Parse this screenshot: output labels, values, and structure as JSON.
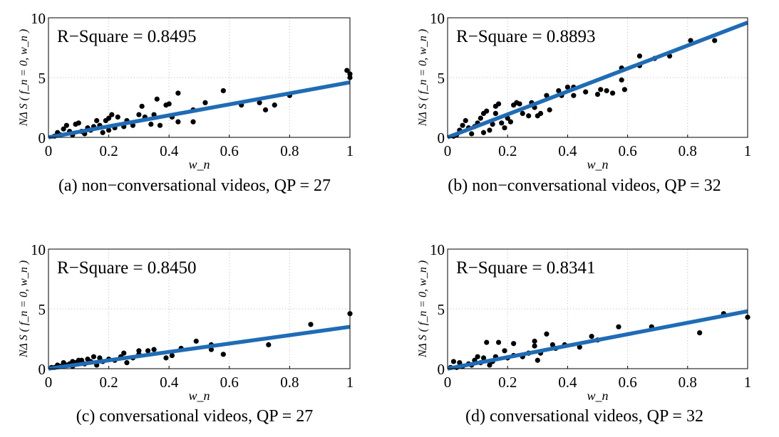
{
  "chart_data": [
    {
      "type": "scatter",
      "caption": "(a) non−conversational videos, QP = 27",
      "annotation": "R−Square = 0.8495",
      "xlabel": "w_n",
      "ylabel": "NΔ S ( f_n = 0, w_n )",
      "xlim": [
        0,
        1
      ],
      "ylim": [
        0,
        10
      ],
      "xticks": [
        "0",
        "0.2",
        "0.4",
        "0.6",
        "0.8",
        "1"
      ],
      "yticks": [
        "0",
        "5",
        "10"
      ],
      "grid": true,
      "fit_line": {
        "x": [
          0,
          1
        ],
        "y": [
          0,
          4.6
        ],
        "color": "#1f6cb5"
      },
      "points": [
        [
          0.99,
          5.6
        ],
        [
          1,
          5.3
        ],
        [
          1,
          5.0
        ],
        [
          0.58,
          3.9
        ],
        [
          0.43,
          3.7
        ],
        [
          0.36,
          3.2
        ],
        [
          0.8,
          3.5
        ],
        [
          0.75,
          2.7
        ],
        [
          0.72,
          2.3
        ],
        [
          0.7,
          2.9
        ],
        [
          0.64,
          2.7
        ],
        [
          0.52,
          2.9
        ],
        [
          0.48,
          1.3
        ],
        [
          0.48,
          2.3
        ],
        [
          0.43,
          1.3
        ],
        [
          0.4,
          2.8
        ],
        [
          0.39,
          2.7
        ],
        [
          0.41,
          1.7
        ],
        [
          0.37,
          1.0
        ],
        [
          0.35,
          1.9
        ],
        [
          0.32,
          1.7
        ],
        [
          0.31,
          2.6
        ],
        [
          0.3,
          1.9
        ],
        [
          0.28,
          1.0
        ],
        [
          0.26,
          1.4
        ],
        [
          0.23,
          1.7
        ],
        [
          0.21,
          1.9
        ],
        [
          0.2,
          1.6
        ],
        [
          0.19,
          1.4
        ],
        [
          0.16,
          1.4
        ],
        [
          0.15,
          0.9
        ],
        [
          0.13,
          0.8
        ],
        [
          0.1,
          1.2
        ],
        [
          0.09,
          1.1
        ],
        [
          0.06,
          1.0
        ],
        [
          0.05,
          0.7
        ],
        [
          0.2,
          0.6
        ],
        [
          0.22,
          0.8
        ],
        [
          0.18,
          0.4
        ],
        [
          0.12,
          0.3
        ],
        [
          0.08,
          0.2
        ],
        [
          0.04,
          0.2
        ],
        [
          0.02,
          0.1
        ],
        [
          0.25,
          0.9
        ],
        [
          0.14,
          0.6
        ],
        [
          0.11,
          0.5
        ],
        [
          0.07,
          0.5
        ],
        [
          0.03,
          0.4
        ],
        [
          0.17,
          1.0
        ],
        [
          0.34,
          1.1
        ]
      ]
    },
    {
      "type": "scatter",
      "caption": "(b) non−conversational videos, QP = 32",
      "annotation": "R−Square = 0.8893",
      "xlabel": "w_n",
      "ylabel": "NΔ S ( f_n = 0, w_n )",
      "xlim": [
        0,
        1
      ],
      "ylim": [
        0,
        10
      ],
      "xticks": [
        "0",
        "0.2",
        "0.4",
        "0.6",
        "0.8",
        "1"
      ],
      "yticks": [
        "0",
        "5",
        "10"
      ],
      "grid": true,
      "fit_line": {
        "x": [
          0,
          1
        ],
        "y": [
          0,
          9.6
        ],
        "color": "#1f6cb5"
      },
      "points": [
        [
          0.89,
          8.1
        ],
        [
          0.81,
          8.1
        ],
        [
          0.74,
          6.8
        ],
        [
          0.69,
          6.6
        ],
        [
          0.64,
          6.8
        ],
        [
          0.64,
          6.0
        ],
        [
          0.58,
          5.8
        ],
        [
          0.58,
          4.8
        ],
        [
          0.59,
          4.0
        ],
        [
          0.55,
          3.7
        ],
        [
          0.53,
          3.9
        ],
        [
          0.51,
          4.0
        ],
        [
          0.5,
          3.6
        ],
        [
          0.46,
          3.8
        ],
        [
          0.42,
          3.5
        ],
        [
          0.42,
          4.2
        ],
        [
          0.4,
          4.2
        ],
        [
          0.38,
          3.5
        ],
        [
          0.37,
          3.9
        ],
        [
          0.34,
          2.3
        ],
        [
          0.33,
          3.5
        ],
        [
          0.31,
          2.0
        ],
        [
          0.3,
          1.8
        ],
        [
          0.29,
          2.5
        ],
        [
          0.28,
          2.9
        ],
        [
          0.27,
          1.8
        ],
        [
          0.25,
          2.0
        ],
        [
          0.24,
          2.8
        ],
        [
          0.23,
          2.9
        ],
        [
          0.22,
          2.7
        ],
        [
          0.21,
          1.3
        ],
        [
          0.2,
          1.6
        ],
        [
          0.18,
          1.2
        ],
        [
          0.17,
          2.8
        ],
        [
          0.16,
          2.6
        ],
        [
          0.16,
          2.0
        ],
        [
          0.15,
          1.1
        ],
        [
          0.13,
          2.2
        ],
        [
          0.12,
          2.0
        ],
        [
          0.11,
          1.6
        ],
        [
          0.1,
          1.2
        ],
        [
          0.09,
          0.9
        ],
        [
          0.07,
          0.8
        ],
        [
          0.06,
          1.4
        ],
        [
          0.05,
          1.0
        ],
        [
          0.04,
          0.6
        ],
        [
          0.14,
          0.6
        ],
        [
          0.12,
          0.4
        ],
        [
          0.08,
          0.3
        ],
        [
          0.03,
          0.2
        ],
        [
          0.02,
          0.1
        ],
        [
          0.19,
          0.8
        ]
      ]
    },
    {
      "type": "scatter",
      "caption": "(c) conversational videos, QP = 27",
      "annotation": "R−Square = 0.8450",
      "xlabel": "w_n",
      "ylabel": "NΔ S ( f_n = 0, w_n )",
      "xlim": [
        0,
        1
      ],
      "ylim": [
        0,
        10
      ],
      "xticks": [
        "0",
        "0.2",
        "0.4",
        "0.6",
        "0.8",
        "1"
      ],
      "yticks": [
        "0",
        "5",
        "10"
      ],
      "grid": true,
      "fit_line": {
        "x": [
          0,
          1
        ],
        "y": [
          0,
          3.5
        ],
        "color": "#1f6cb5"
      },
      "points": [
        [
          1,
          4.6
        ],
        [
          0.87,
          3.7
        ],
        [
          0.73,
          2.0
        ],
        [
          0.58,
          1.2
        ],
        [
          0.54,
          1.6
        ],
        [
          0.54,
          2.0
        ],
        [
          0.49,
          2.3
        ],
        [
          0.44,
          1.7
        ],
        [
          0.41,
          1.1
        ],
        [
          0.39,
          0.9
        ],
        [
          0.35,
          1.6
        ],
        [
          0.33,
          1.5
        ],
        [
          0.3,
          1.2
        ],
        [
          0.3,
          1.5
        ],
        [
          0.28,
          0.9
        ],
        [
          0.26,
          0.5
        ],
        [
          0.25,
          1.3
        ],
        [
          0.24,
          1.0
        ],
        [
          0.22,
          0.7
        ],
        [
          0.2,
          0.8
        ],
        [
          0.18,
          0.6
        ],
        [
          0.17,
          0.9
        ],
        [
          0.15,
          1.0
        ],
        [
          0.14,
          0.6
        ],
        [
          0.13,
          0.8
        ],
        [
          0.12,
          0.4
        ],
        [
          0.11,
          0.7
        ],
        [
          0.1,
          0.7
        ],
        [
          0.09,
          0.5
        ],
        [
          0.08,
          0.6
        ],
        [
          0.07,
          0.4
        ],
        [
          0.06,
          0.3
        ],
        [
          0.05,
          0.5
        ],
        [
          0.04,
          0.2
        ],
        [
          0.03,
          0.3
        ],
        [
          0.02,
          0.1
        ],
        [
          0.01,
          0.1
        ],
        [
          0.16,
          0.3
        ],
        [
          0.08,
          0.2
        ]
      ]
    },
    {
      "type": "scatter",
      "caption": "(d) conversational videos, QP = 32",
      "annotation": "R−Square = 0.8341",
      "xlabel": "w_n",
      "ylabel": "NΔ S ( f_n = 0, w_n )",
      "xlim": [
        0,
        1
      ],
      "ylim": [
        0,
        10
      ],
      "xticks": [
        "0",
        "0.2",
        "0.4",
        "0.6",
        "0.8",
        "1"
      ],
      "yticks": [
        "0",
        "5",
        "10"
      ],
      "grid": true,
      "fit_line": {
        "x": [
          0,
          1
        ],
        "y": [
          0,
          4.8
        ],
        "color": "#1f6cb5"
      },
      "points": [
        [
          1,
          4.3
        ],
        [
          0.92,
          4.6
        ],
        [
          0.84,
          3.0
        ],
        [
          0.68,
          3.5
        ],
        [
          0.57,
          3.5
        ],
        [
          0.5,
          2.4
        ],
        [
          0.48,
          2.7
        ],
        [
          0.44,
          1.8
        ],
        [
          0.39,
          2.0
        ],
        [
          0.36,
          1.7
        ],
        [
          0.35,
          2.0
        ],
        [
          0.33,
          2.9
        ],
        [
          0.31,
          1.3
        ],
        [
          0.3,
          0.7
        ],
        [
          0.29,
          1.9
        ],
        [
          0.29,
          2.3
        ],
        [
          0.27,
          1.3
        ],
        [
          0.25,
          1.0
        ],
        [
          0.22,
          1.1
        ],
        [
          0.22,
          2.1
        ],
        [
          0.2,
          0.9
        ],
        [
          0.19,
          1.5
        ],
        [
          0.17,
          2.2
        ],
        [
          0.16,
          1.0
        ],
        [
          0.15,
          0.6
        ],
        [
          0.13,
          2.2
        ],
        [
          0.12,
          0.9
        ],
        [
          0.11,
          0.5
        ],
        [
          0.1,
          1.0
        ],
        [
          0.09,
          0.7
        ],
        [
          0.08,
          0.3
        ],
        [
          0.07,
          0.4
        ],
        [
          0.05,
          0.2
        ],
        [
          0.04,
          0.5
        ],
        [
          0.03,
          0.1
        ],
        [
          0.02,
          0.6
        ],
        [
          0.01,
          0.1
        ],
        [
          0.14,
          0.3
        ]
      ]
    }
  ]
}
